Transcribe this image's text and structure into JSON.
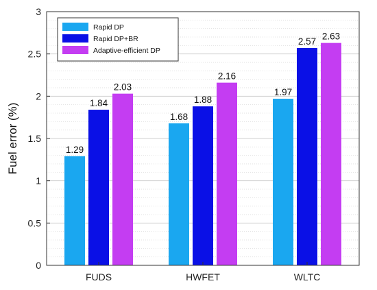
{
  "chart_data": {
    "type": "bar",
    "title": "",
    "xlabel": "",
    "ylabel": "Fuel error (%)",
    "categories": [
      "FUDS",
      "HWFET",
      "WLTC"
    ],
    "ylim": [
      0,
      3
    ],
    "yticks": [
      "0",
      "0.5",
      "1",
      "1.5",
      "2",
      "2.5",
      "3"
    ],
    "grid": true,
    "legend_position": "top-left",
    "series": [
      {
        "name": "Rapid DP",
        "color": "#1aa7f0",
        "values": [
          1.29,
          1.68,
          1.97
        ],
        "labels": [
          "1.29",
          "1.68",
          "1.97"
        ]
      },
      {
        "name": "Rapid DP+BR",
        "color": "#0a10e6",
        "values": [
          1.84,
          1.88,
          2.57
        ],
        "labels": [
          "1.84",
          "1.88",
          "2.57"
        ]
      },
      {
        "name": "Adaptive-efficient  DP",
        "color": "#c43df2",
        "values": [
          2.03,
          2.16,
          2.63
        ],
        "labels": [
          "2.03",
          "2.16",
          "2.63"
        ]
      }
    ]
  }
}
